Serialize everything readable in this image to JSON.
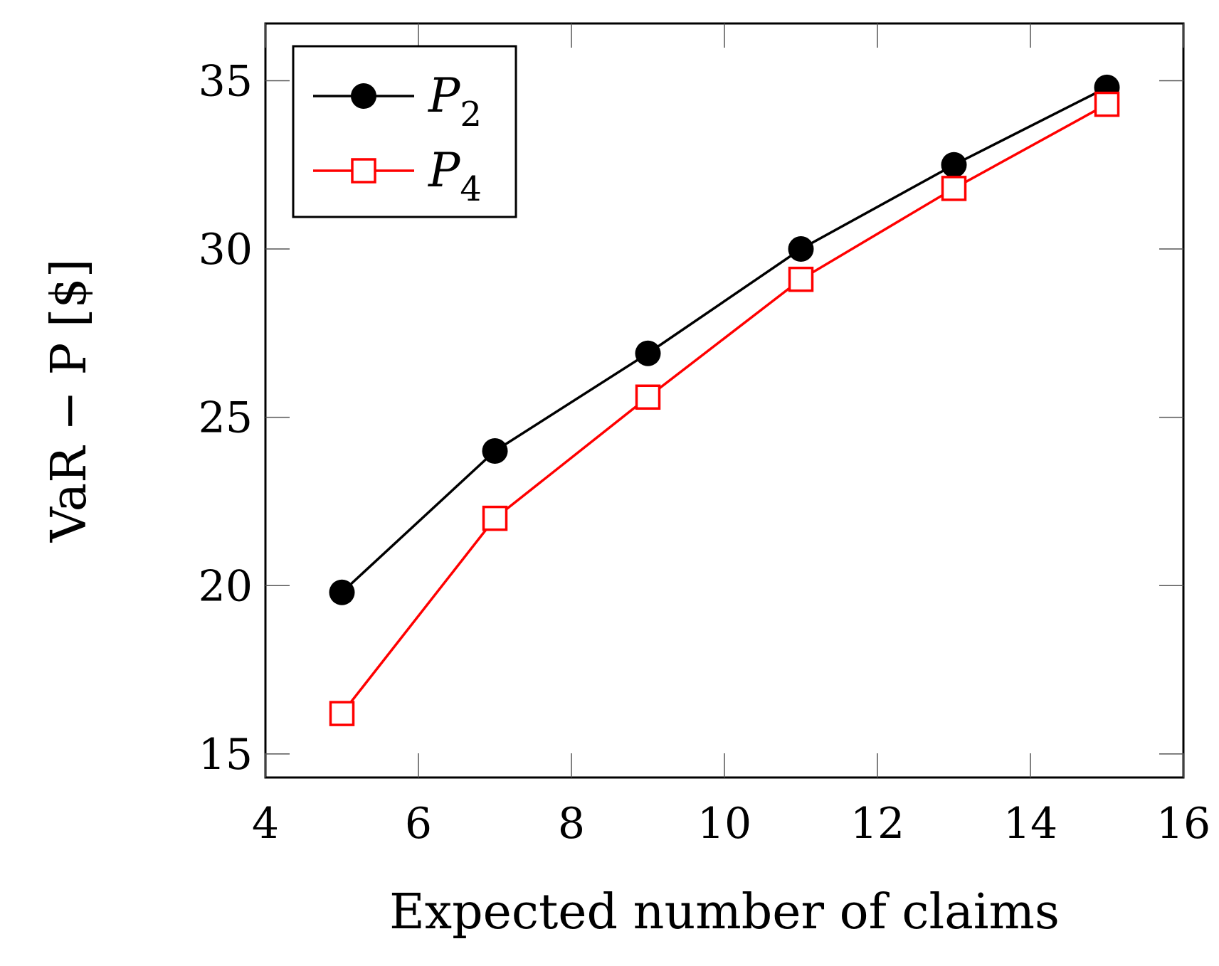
{
  "chart_data": {
    "type": "line",
    "xlabel": "Expected number of claims",
    "ylabel": "VaR − P   [$]",
    "xlim": [
      4,
      16
    ],
    "ylim": [
      14.3,
      36.7
    ],
    "xticks": [
      4,
      6,
      8,
      10,
      12,
      14,
      16
    ],
    "yticks": [
      15,
      20,
      25,
      30,
      35
    ],
    "grid": false,
    "legend_position": "top-left",
    "series": [
      {
        "name": "P",
        "subscript": "2",
        "color": "#000000",
        "marker": "filled-circle",
        "x": [
          5,
          7,
          9,
          11,
          13,
          15
        ],
        "y": [
          19.8,
          24.0,
          26.9,
          30.0,
          32.5,
          34.8
        ]
      },
      {
        "name": "P",
        "subscript": "4",
        "color": "#ff0000",
        "marker": "open-square",
        "x": [
          5,
          7,
          9,
          11,
          13,
          15
        ],
        "y": [
          16.2,
          22.0,
          25.6,
          29.1,
          31.8,
          34.3
        ]
      }
    ]
  }
}
